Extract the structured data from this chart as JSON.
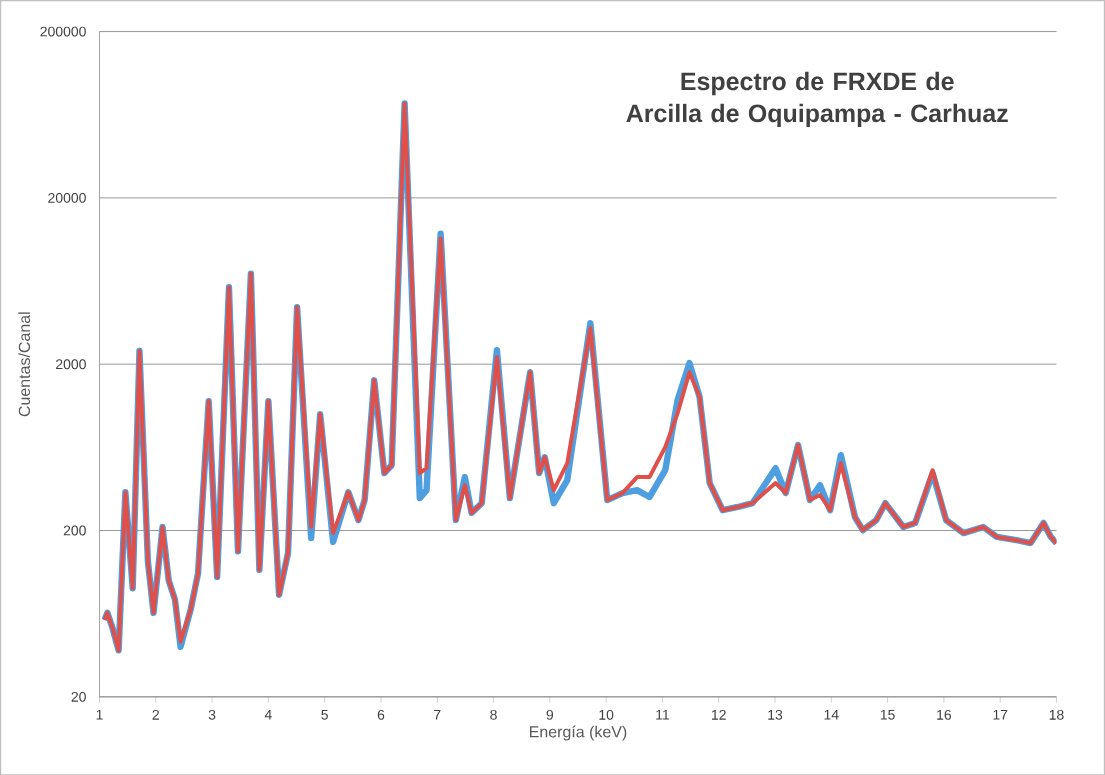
{
  "chart_data": {
    "type": "line",
    "title": "Espectro de FRXDE de Arcilla de Oquipampa - Carhuaz",
    "xlabel": "Energía (keV)",
    "ylabel": "Cuentas/Canal",
    "log": "y",
    "grid": "y",
    "xlim": [
      1,
      18
    ],
    "ylim": [
      20,
      200000
    ],
    "xticks": [
      1,
      2,
      3,
      4,
      5,
      6,
      7,
      8,
      9,
      10,
      11,
      12,
      13,
      14,
      15,
      16,
      17,
      18
    ],
    "yticks": [
      20,
      200,
      2000,
      20000,
      200000
    ],
    "x": [
      1.09,
      1.14,
      1.23,
      1.34,
      1.46,
      1.59,
      1.71,
      1.86,
      1.96,
      2.12,
      2.23,
      2.34,
      2.44,
      2.62,
      2.75,
      2.94,
      3.09,
      3.3,
      3.46,
      3.69,
      3.84,
      4.0,
      4.19,
      4.35,
      4.51,
      4.76,
      4.92,
      5.15,
      5.42,
      5.6,
      5.71,
      5.88,
      6.06,
      6.19,
      6.42,
      6.69,
      6.81,
      7.06,
      7.33,
      7.49,
      7.61,
      7.79,
      8.06,
      8.29,
      8.65,
      8.81,
      8.91,
      9.07,
      9.31,
      9.72,
      10.02,
      10.29,
      10.55,
      10.77,
      11.05,
      11.27,
      11.48,
      11.66,
      11.84,
      12.07,
      12.34,
      12.6,
      13.01,
      13.19,
      13.41,
      13.62,
      13.8,
      13.98,
      14.17,
      14.42,
      14.56,
      14.8,
      14.96,
      15.28,
      15.49,
      15.8,
      16.04,
      16.35,
      16.7,
      16.94,
      17.29,
      17.54,
      17.77,
      17.9,
      18.0
    ],
    "series": [
      {
        "color": "#4f9fe0",
        "values": [
          58,
          64,
          52,
          38,
          340,
          90,
          2400,
          130,
          64,
          210,
          100,
          77,
          40,
          67,
          110,
          1200,
          105,
          5800,
          150,
          7000,
          116,
          1200,
          82,
          147,
          4400,
          180,
          1000,
          171,
          340,
          231,
          305,
          1600,
          443,
          494,
          74000,
          313,
          350,
          12200,
          231,
          419,
          255,
          292,
          2430,
          313,
          1790,
          443,
          552,
          292,
          402,
          3530,
          305,
          336,
          350,
          318,
          461,
          1220,
          2030,
          1270,
          386,
          265,
          277,
          292,
          474,
          336,
          653,
          305,
          375,
          265,
          568,
          241,
          201,
          231,
          292,
          210,
          222,
          443,
          231,
          193,
          210,
          183,
          175,
          168,
          222,
          183,
          168
        ]
      },
      {
        "color": "#e0504a",
        "values": [
          58,
          64,
          52,
          38,
          340,
          90,
          2400,
          130,
          64,
          210,
          100,
          77,
          43,
          67,
          110,
          1200,
          105,
          5800,
          150,
          7000,
          116,
          1200,
          82,
          147,
          4400,
          210,
          1000,
          193,
          340,
          231,
          305,
          1600,
          443,
          494,
          74000,
          443,
          474,
          11400,
          231,
          375,
          255,
          292,
          2200,
          313,
          1790,
          443,
          552,
          350,
          508,
          3290,
          305,
          336,
          419,
          419,
          635,
          1016,
          1790,
          1270,
          386,
          265,
          277,
          292,
          386,
          336,
          653,
          305,
          327,
          265,
          508,
          241,
          201,
          231,
          292,
          210,
          222,
          461,
          231,
          193,
          210,
          183,
          175,
          168,
          222,
          183,
          168
        ]
      }
    ]
  }
}
